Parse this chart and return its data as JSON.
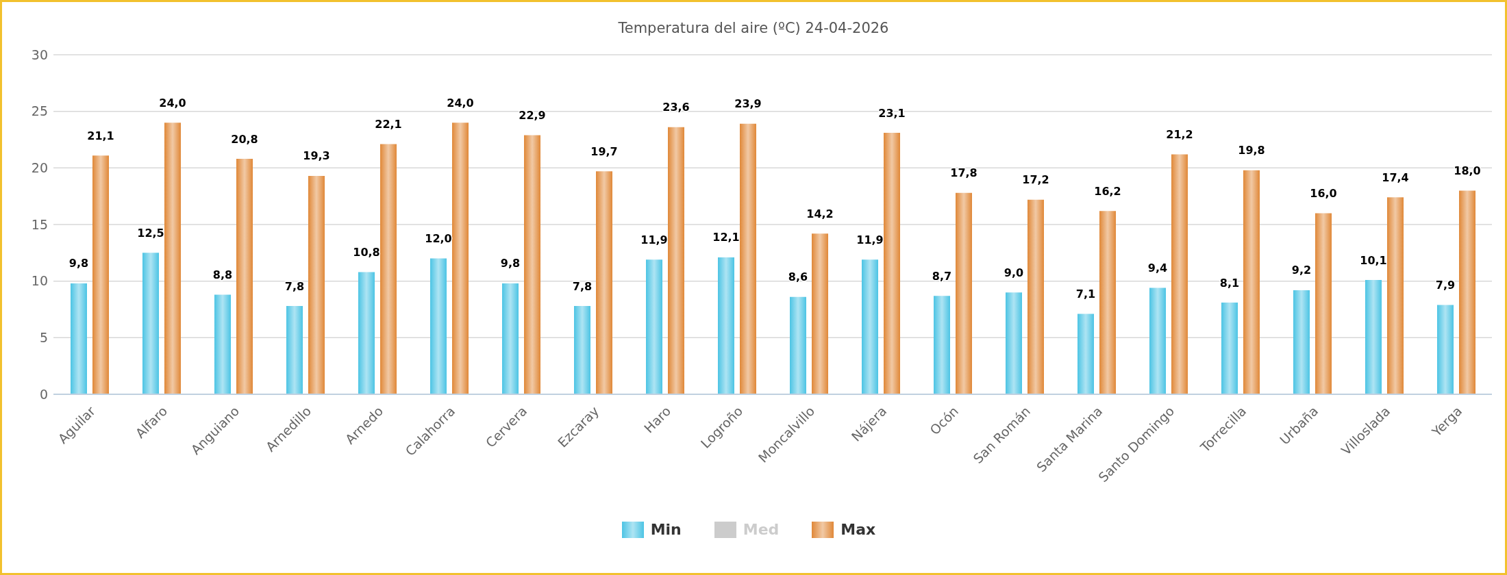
{
  "chart_data": {
    "type": "bar",
    "title": "Temperatura del aire (ºC) 24-04-2026",
    "categories": [
      "Aguilar",
      "Alfaro",
      "Anguiano",
      "Arnedillo",
      "Arnedo",
      "Calahorra",
      "Cervera",
      "Ezcaray",
      "Haro",
      "Logroño",
      "Moncalvillo",
      "Nájera",
      "Ocón",
      "San Román",
      "Santa Marina",
      "Santo Domingo",
      "Torrecilla",
      "Urbaña",
      "Villoslada",
      "Yerga"
    ],
    "series": [
      {
        "name": "Min",
        "color": "#4cc4e4",
        "values": [
          9.8,
          12.5,
          8.8,
          7.8,
          10.8,
          12.0,
          9.8,
          7.8,
          11.9,
          12.1,
          8.6,
          11.9,
          8.7,
          9.0,
          7.1,
          9.4,
          8.1,
          9.2,
          10.1,
          7.9
        ],
        "value_labels": [
          "9,8",
          "12,5",
          "8,8",
          "7,8",
          "10,8",
          "12,0",
          "9,8",
          "7,8",
          "11,9",
          "12,1",
          "8,6",
          "11,9",
          "8,7",
          "9,0",
          "7,1",
          "9,4",
          "8,1",
          "9,2",
          "10,1",
          "7,9"
        ]
      },
      {
        "name": "Med",
        "color": "#cccccc",
        "values": [
          null,
          null,
          null,
          null,
          null,
          null,
          null,
          null,
          null,
          null,
          null,
          null,
          null,
          null,
          null,
          null,
          null,
          null,
          null,
          null
        ]
      },
      {
        "name": "Max",
        "color": "#e08838",
        "values": [
          21.1,
          24.0,
          20.8,
          19.3,
          22.1,
          24.0,
          22.9,
          19.7,
          23.6,
          23.9,
          14.2,
          23.1,
          17.8,
          17.2,
          16.2,
          21.2,
          19.8,
          16.0,
          17.4,
          18.0
        ],
        "value_labels": [
          "21,1",
          "24,0",
          "20,8",
          "19,3",
          "22,1",
          "24,0",
          "22,9",
          "19,7",
          "23,6",
          "23,9",
          "14,2",
          "23,1",
          "17,8",
          "17,2",
          "16,2",
          "21,2",
          "19,8",
          "16,0",
          "17,4",
          "18,0"
        ]
      }
    ],
    "ylim": [
      0,
      30
    ],
    "yticks": [
      0,
      5,
      10,
      15,
      20,
      25,
      30
    ],
    "grid": "y",
    "legend": "bottom"
  }
}
